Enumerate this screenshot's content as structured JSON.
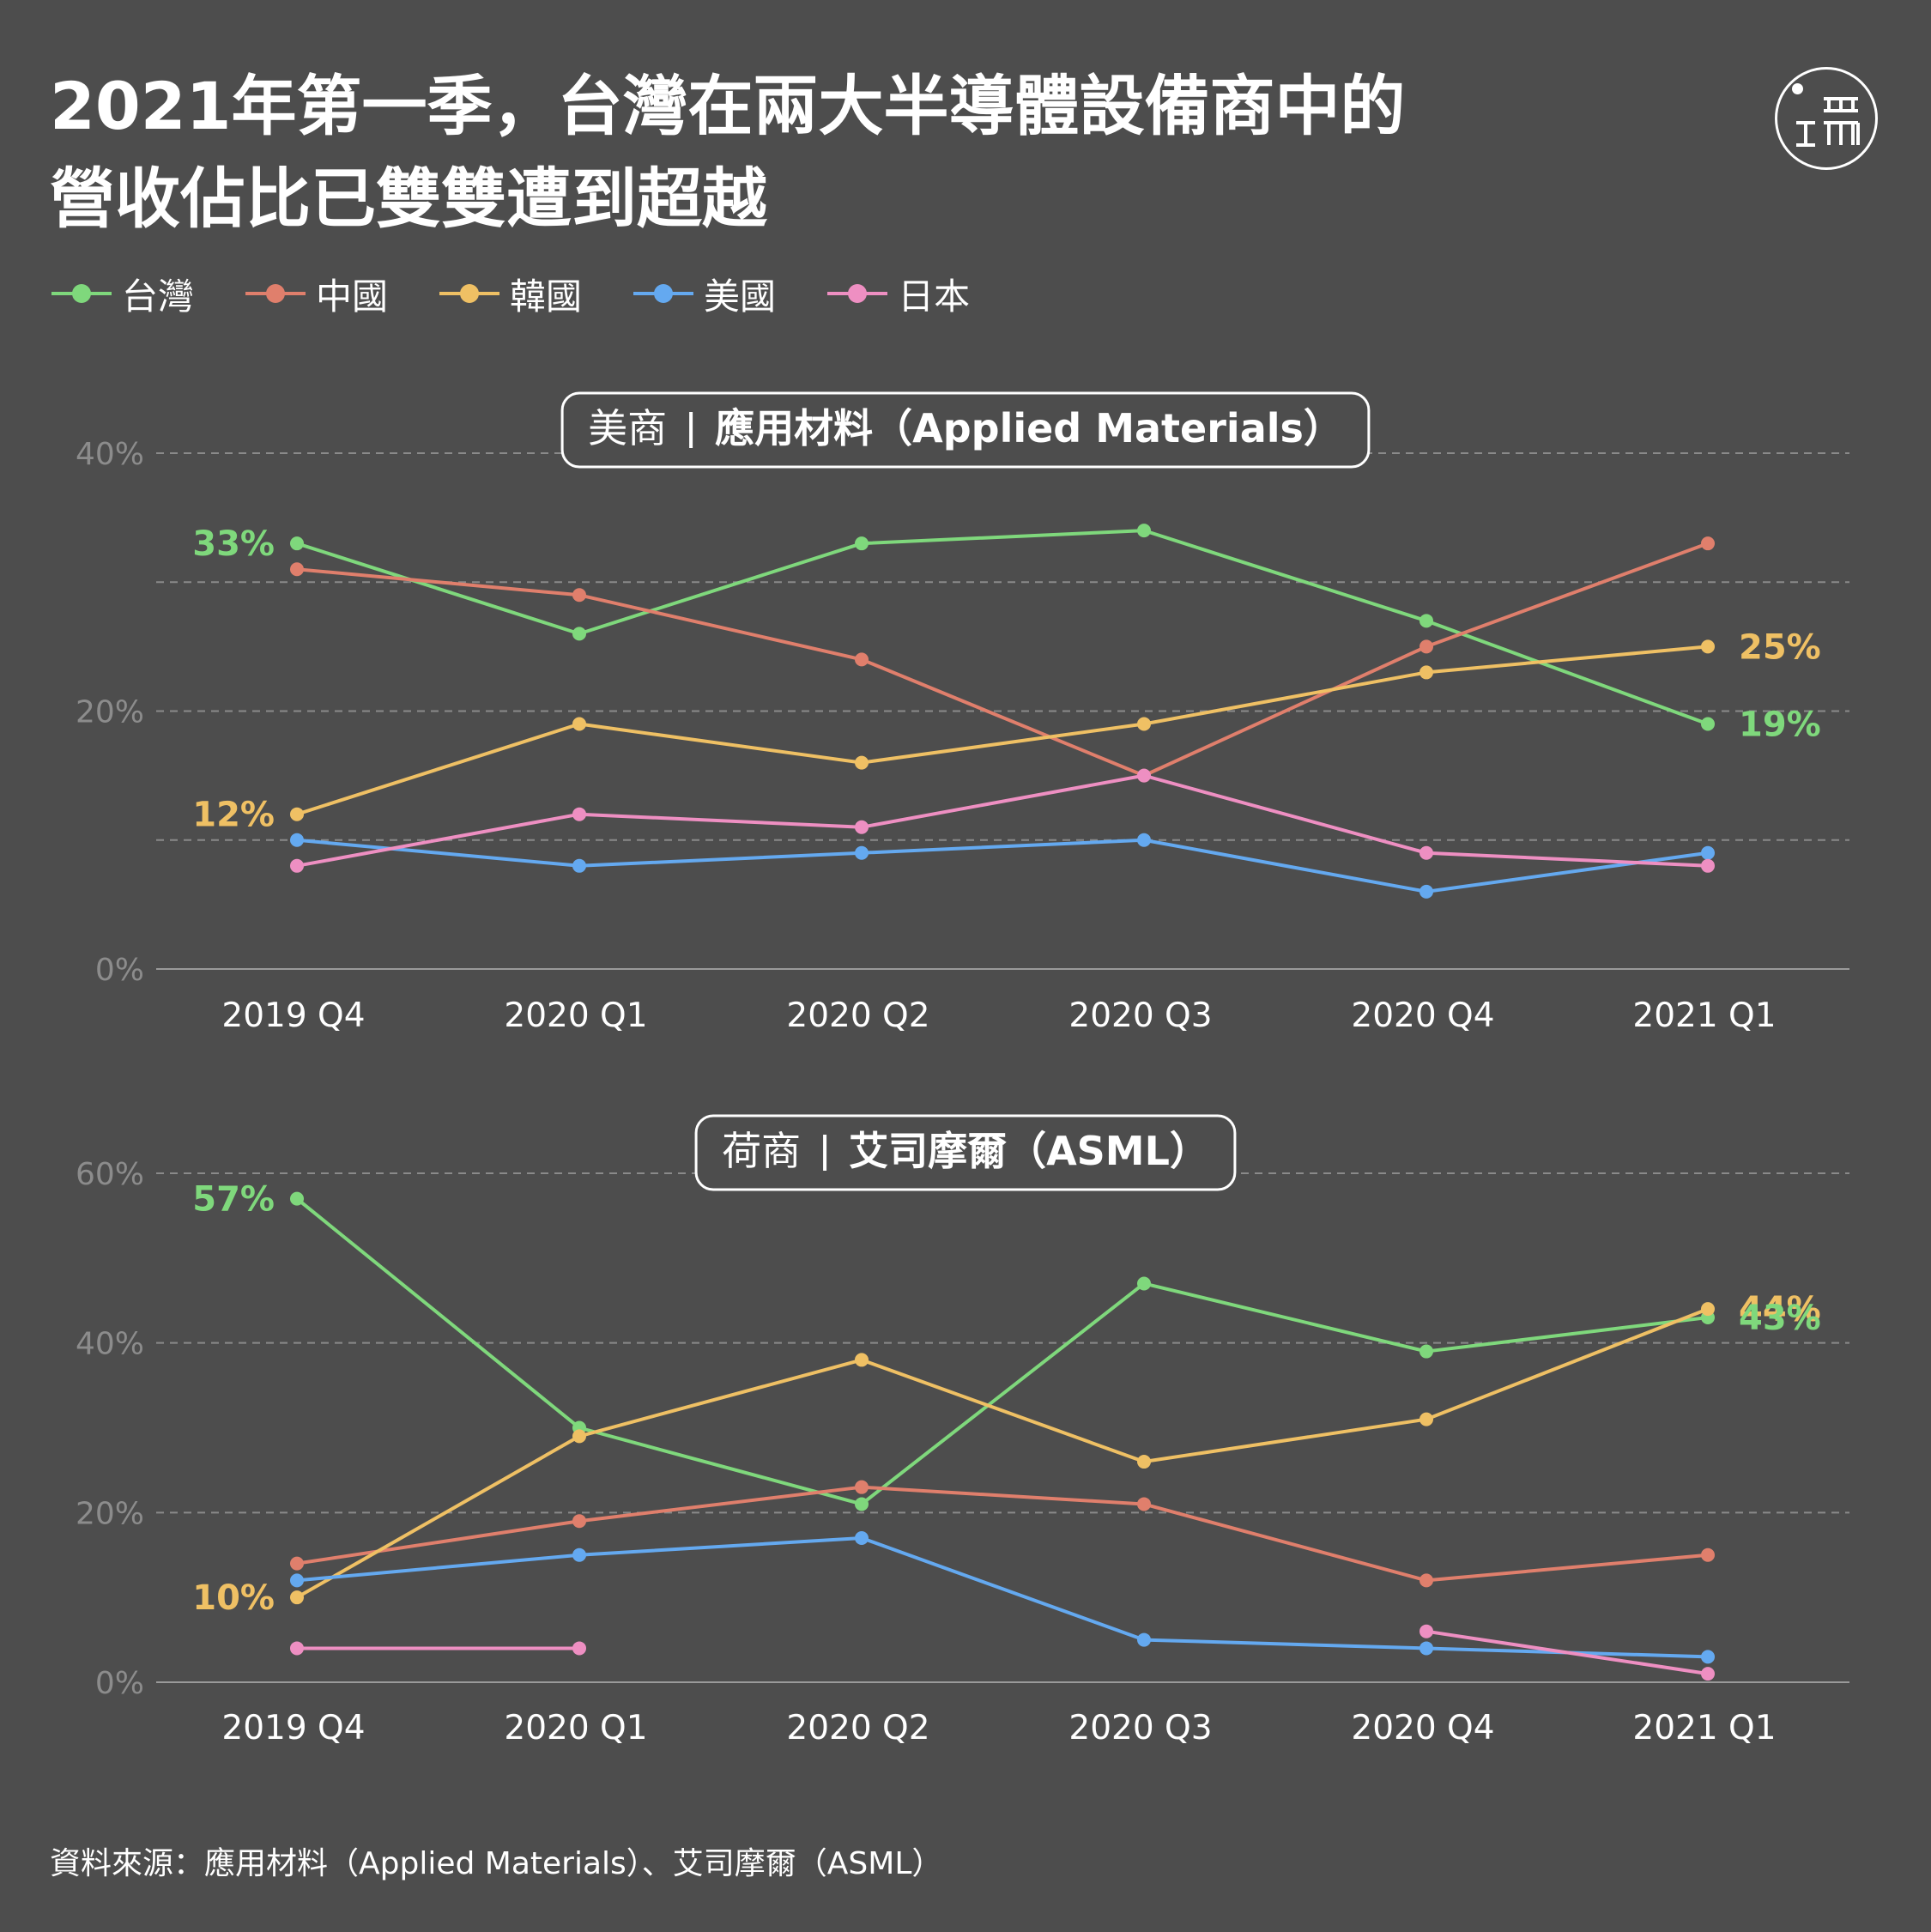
{
  "title": {
    "line1": "2021年第一季，台灣在兩大半導體設備商中的",
    "line2": "營收佔比已雙雙遭到超越"
  },
  "logo": {
    "text": "端",
    "icon": "initium-logo-icon"
  },
  "legend": [
    {
      "name": "台灣",
      "color": "#7fd87c"
    },
    {
      "name": "中國",
      "color": "#e07f6c"
    },
    {
      "name": "韓國",
      "color": "#efc064"
    },
    {
      "name": "美國",
      "color": "#64a9f0"
    },
    {
      "name": "日本",
      "color": "#ee8fc2"
    }
  ],
  "chart_data": [
    {
      "type": "line",
      "title_prefix": "美商",
      "title": "應用材料（Applied Materials）",
      "categories": [
        "2019 Q4",
        "2020 Q1",
        "2020 Q2",
        "2020 Q3",
        "2020 Q4",
        "2021 Q1"
      ],
      "ylim": [
        0,
        40
      ],
      "yticks": [
        {
          "value": 0,
          "label": "0%"
        },
        {
          "value": 20,
          "label": "20%"
        },
        {
          "value": 40,
          "label": "40%"
        }
      ],
      "gridlines": [
        10,
        20,
        30,
        40
      ],
      "series": [
        {
          "name": "台灣",
          "color": "#7fd87c",
          "values": [
            33,
            26,
            33,
            34,
            27,
            19
          ]
        },
        {
          "name": "中國",
          "color": "#e07f6c",
          "values": [
            31,
            29,
            24,
            15,
            25,
            33
          ]
        },
        {
          "name": "韓國",
          "color": "#efc064",
          "values": [
            12,
            19,
            16,
            19,
            23,
            25
          ]
        },
        {
          "name": "美國",
          "color": "#64a9f0",
          "values": [
            10,
            8,
            9,
            10,
            6,
            9
          ]
        },
        {
          "name": "日本",
          "color": "#ee8fc2",
          "values": [
            8,
            12,
            11,
            15,
            9,
            8
          ]
        }
      ],
      "annotations": [
        {
          "text": "33%",
          "series": "台灣",
          "index": 0,
          "side": "left",
          "color": "#7fd87c"
        },
        {
          "text": "12%",
          "series": "韓國",
          "index": 0,
          "side": "left",
          "color": "#efc064"
        },
        {
          "text": "25%",
          "series": "韓國",
          "index": 5,
          "side": "right",
          "color": "#efc064"
        },
        {
          "text": "19%",
          "series": "台灣",
          "index": 5,
          "side": "right",
          "color": "#7fd87c"
        }
      ]
    },
    {
      "type": "line",
      "title_prefix": "荷商",
      "title": "艾司摩爾（ASML）",
      "categories": [
        "2019 Q4",
        "2020 Q1",
        "2020 Q2",
        "2020 Q3",
        "2020 Q4",
        "2021 Q1"
      ],
      "ylim": [
        0,
        60
      ],
      "yticks": [
        {
          "value": 0,
          "label": "0%"
        },
        {
          "value": 20,
          "label": "20%"
        },
        {
          "value": 40,
          "label": "40%"
        },
        {
          "value": 60,
          "label": "60%"
        }
      ],
      "gridlines": [
        20,
        40,
        60
      ],
      "series": [
        {
          "name": "台灣",
          "color": "#7fd87c",
          "values": [
            57,
            30,
            21,
            47,
            39,
            43
          ]
        },
        {
          "name": "中國",
          "color": "#e07f6c",
          "values": [
            14,
            19,
            23,
            21,
            12,
            15
          ]
        },
        {
          "name": "韓國",
          "color": "#efc064",
          "values": [
            10,
            29,
            38,
            26,
            31,
            44
          ]
        },
        {
          "name": "美國",
          "color": "#64a9f0",
          "values": [
            12,
            15,
            17,
            5,
            4,
            3
          ]
        },
        {
          "name": "日本",
          "color": "#ee8fc2",
          "values": [
            4,
            4,
            null,
            null,
            6,
            1
          ]
        }
      ],
      "annotations": [
        {
          "text": "57%",
          "series": "台灣",
          "index": 0,
          "side": "left",
          "color": "#7fd87c"
        },
        {
          "text": "10%",
          "series": "韓國",
          "index": 0,
          "side": "left",
          "color": "#efc064"
        },
        {
          "text": "44%",
          "series": "韓國",
          "index": 5,
          "side": "right",
          "color": "#efc064"
        },
        {
          "text": "43%",
          "series": "台灣",
          "index": 5,
          "side": "right",
          "color": "#7fd87c"
        }
      ]
    }
  ],
  "footer": "資料來源：應用材料（Applied Materials）、艾司摩爾（ASML）"
}
